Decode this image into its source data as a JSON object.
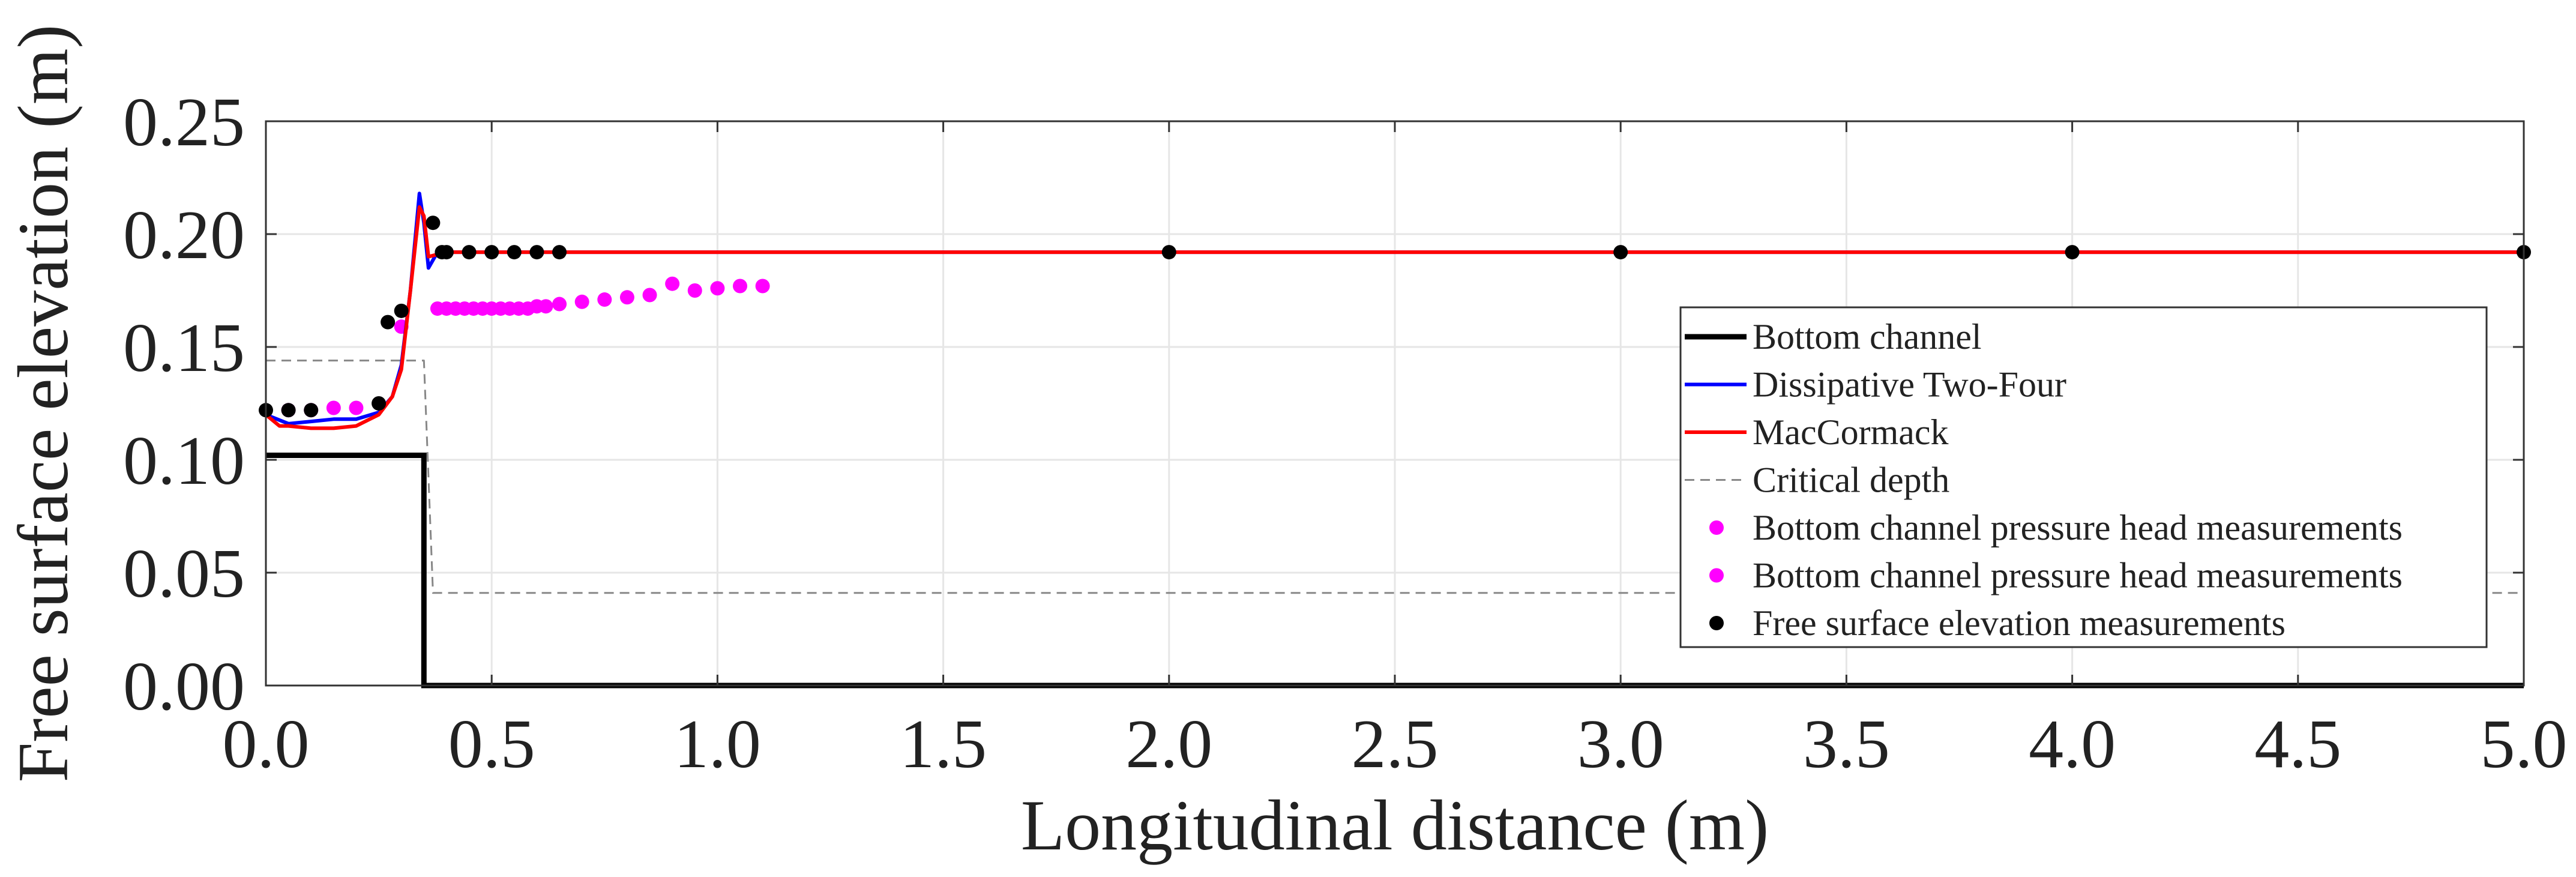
{
  "chart_data": {
    "type": "line",
    "title": "",
    "xlabel": "Longitudinal distance (m)",
    "ylabel": "Free surface elevation (m)",
    "xlim": [
      0.0,
      5.0
    ],
    "ylim": [
      0.0,
      0.25
    ],
    "grid": true,
    "legend_position": "right",
    "x_ticks": [
      "0.0",
      "0.5",
      "1.0",
      "1.5",
      "2.0",
      "2.5",
      "3.0",
      "3.5",
      "4.0",
      "4.5",
      "5.0"
    ],
    "y_ticks": [
      "0.00",
      "0.05",
      "0.10",
      "0.15",
      "0.20",
      "0.25"
    ],
    "series": [
      {
        "name": "Bottom channel",
        "style": "line",
        "color": "#000000",
        "x": [
          0.0,
          0.35,
          0.35,
          5.0
        ],
        "y": [
          0.102,
          0.102,
          0.0,
          0.0
        ]
      },
      {
        "name": "Dissipative Two-Four",
        "style": "line",
        "color": "#0000ff",
        "x": [
          0.0,
          0.05,
          0.1,
          0.15,
          0.2,
          0.25,
          0.28,
          0.3,
          0.32,
          0.34,
          0.35,
          0.36,
          0.38,
          0.4,
          0.5,
          1.0,
          2.0,
          3.0,
          4.0,
          5.0
        ],
        "y": [
          0.12,
          0.116,
          0.117,
          0.118,
          0.118,
          0.121,
          0.128,
          0.142,
          0.175,
          0.218,
          0.205,
          0.185,
          0.192,
          0.192,
          0.192,
          0.192,
          0.192,
          0.192,
          0.192,
          0.192
        ]
      },
      {
        "name": "MacCormack",
        "style": "line",
        "color": "#ff0000",
        "x": [
          0.0,
          0.03,
          0.05,
          0.1,
          0.15,
          0.2,
          0.25,
          0.28,
          0.3,
          0.32,
          0.34,
          0.35,
          0.36,
          0.38,
          0.4,
          0.5,
          1.0,
          2.0,
          3.0,
          4.0,
          5.0
        ],
        "y": [
          0.12,
          0.115,
          0.115,
          0.114,
          0.114,
          0.115,
          0.12,
          0.128,
          0.14,
          0.175,
          0.212,
          0.208,
          0.19,
          0.191,
          0.192,
          0.192,
          0.192,
          0.192,
          0.192,
          0.192,
          0.192
        ]
      },
      {
        "name": "Critical depth",
        "style": "dashed",
        "color": "#888888",
        "x": [
          0.0,
          0.35,
          0.37,
          5.0
        ],
        "y": [
          0.144,
          0.144,
          0.041,
          0.041
        ]
      },
      {
        "name": "Bottom channel pressure head measurements",
        "style": "markers",
        "color": "#ff00ff",
        "x": [
          0.05,
          0.1,
          0.15,
          0.2,
          0.3,
          0.38,
          0.4,
          0.42,
          0.44,
          0.46,
          0.48,
          0.5,
          0.52,
          0.54,
          0.56,
          0.58,
          0.6,
          0.62,
          0.65
        ],
        "y": [
          0.122,
          0.122,
          0.123,
          0.123,
          0.159,
          0.167,
          0.167,
          0.167,
          0.167,
          0.167,
          0.167,
          0.167,
          0.167,
          0.167,
          0.167,
          0.167,
          0.168,
          0.168,
          0.169
        ]
      },
      {
        "name": "Bottom channel pressure head measurements",
        "style": "markers",
        "color": "#ff00ff",
        "x": [
          0.7,
          0.75,
          0.8,
          0.85,
          0.9,
          0.95,
          1.0,
          1.05,
          1.1
        ],
        "y": [
          0.17,
          0.171,
          0.172,
          0.173,
          0.178,
          0.175,
          0.176,
          0.177,
          0.177
        ]
      },
      {
        "name": "Free surface elevation measurements",
        "style": "markers",
        "color": "#000000",
        "x": [
          0.0,
          0.05,
          0.1,
          0.25,
          0.27,
          0.3,
          0.37,
          0.39,
          0.4,
          0.45,
          0.5,
          0.55,
          0.6,
          0.65,
          2.0,
          3.0,
          4.0,
          5.0
        ],
        "y": [
          0.122,
          0.122,
          0.122,
          0.125,
          0.161,
          0.166,
          0.205,
          0.192,
          0.192,
          0.192,
          0.192,
          0.192,
          0.192,
          0.192,
          0.192,
          0.192,
          0.192,
          0.192
        ]
      }
    ]
  }
}
